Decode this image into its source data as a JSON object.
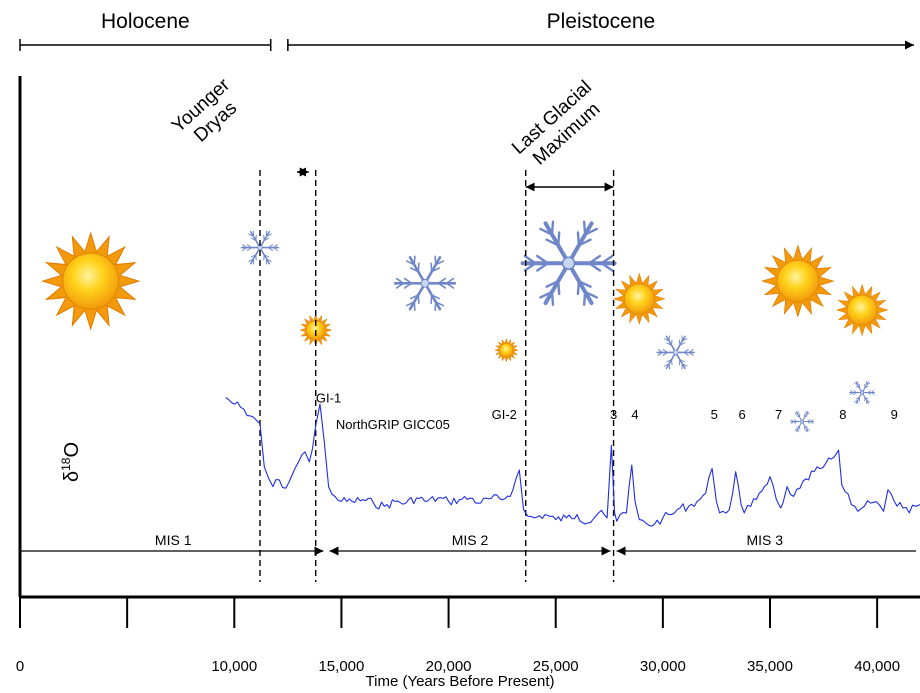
{
  "colors": {
    "series": "#1f2ee6",
    "axis": "#000000",
    "sun_outer": "#f29a0c",
    "sun_inner": "#ffd21a",
    "snowflake": "#6f86c9"
  },
  "eras": [
    {
      "label": "Holocene",
      "from": 0,
      "to": 11700,
      "arrow_end": false
    },
    {
      "label": "Pleistocene",
      "from": 12500,
      "to": 42000,
      "arrow_end": true
    }
  ],
  "annotations": [
    {
      "label_lines": [
        "Younger",
        "Dryas"
      ],
      "from": 12600,
      "to": 13800
    },
    {
      "label_lines": [
        "Last Glacial",
        "Maximum"
      ],
      "from": 23600,
      "to": 27700
    }
  ],
  "icons": [
    {
      "name": "sun-icon",
      "x": 3300,
      "level": 0.78,
      "size": 1.0
    },
    {
      "name": "sun-icon",
      "x": 13800,
      "level": 0.56,
      "size": 0.33
    },
    {
      "name": "sun-icon",
      "x": 22700,
      "level": 0.47,
      "size": 0.24
    },
    {
      "name": "sun-icon",
      "x": 28900,
      "level": 0.7,
      "size": 0.53
    },
    {
      "name": "sun-icon",
      "x": 36300,
      "level": 0.78,
      "size": 0.74
    },
    {
      "name": "sun-icon",
      "x": 39300,
      "level": 0.65,
      "size": 0.53
    },
    {
      "name": "snowflake-icon",
      "x": 11200,
      "level": 0.93,
      "size": 0.4
    },
    {
      "name": "snowflake-icon",
      "x": 18900,
      "level": 0.77,
      "size": 0.65
    },
    {
      "name": "snowflake-icon",
      "x": 25600,
      "level": 0.86,
      "size": 1.0
    },
    {
      "name": "snowflake-icon",
      "x": 30600,
      "level": 0.46,
      "size": 0.4
    },
    {
      "name": "snowflake-icon",
      "x": 36500,
      "level": 0.15,
      "size": 0.25
    },
    {
      "name": "snowflake-icon",
      "x": 39300,
      "level": 0.28,
      "size": 0.27
    }
  ],
  "chart_data": {
    "type": "line",
    "title": "",
    "xlabel": "Time (Years Before Present)",
    "ylabel": "δ18O",
    "ylabel_base": "δ",
    "ylabel_sup": "18",
    "ylabel_tail": "O",
    "xlim": [
      0,
      42000
    ],
    "ylim": [
      -46,
      -36
    ],
    "xticks": [
      0,
      10000,
      15000,
      20000,
      25000,
      30000,
      35000,
      40000
    ],
    "xtick_labels": [
      "0",
      "10,000",
      "15,000",
      "20,000",
      "25,000",
      "30,000",
      "35,000",
      "40,000"
    ],
    "minor_ticks": [
      5000
    ],
    "grid": false,
    "series": [
      {
        "name": "NorthGRIP GICC05",
        "x": [
          9600,
          10000,
          10300,
          10600,
          10900,
          11200,
          11400,
          11600,
          11800,
          12100,
          12400,
          12700,
          13000,
          13300,
          13500,
          13650,
          13800,
          14000,
          14200,
          14400,
          14700,
          15000,
          15500,
          16000,
          16500,
          17000,
          17500,
          18000,
          18500,
          19000,
          19500,
          20000,
          20500,
          21000,
          21500,
          22000,
          22500,
          23000,
          23300,
          23500,
          23700,
          24000,
          24500,
          25000,
          25500,
          26000,
          26500,
          27000,
          27400,
          27600,
          27750,
          27850,
          28000,
          28300,
          28550,
          28700,
          28900,
          29200,
          29600,
          30000,
          30400,
          30800,
          31200,
          31600,
          32000,
          32300,
          32500,
          32650,
          32800,
          33100,
          33400,
          33650,
          33800,
          34100,
          34500,
          35000,
          35300,
          35500,
          35600,
          35800,
          36100,
          36400,
          36800,
          37200,
          37600,
          38000,
          38200,
          38350,
          38500,
          38800,
          39100,
          39400,
          39700,
          40100,
          40300,
          40500,
          40800,
          41200,
          41500,
          41800,
          42000
        ],
        "y": [
          -37.3,
          -37.7,
          -37.9,
          -38.4,
          -38.5,
          -38.9,
          -41.5,
          -42.2,
          -42.7,
          -42.3,
          -42.8,
          -42.0,
          -41.2,
          -40.6,
          -41.2,
          -40.4,
          -39.0,
          -37.7,
          -40.0,
          -42.7,
          -43.3,
          -43.6,
          -43.6,
          -43.5,
          -43.7,
          -43.9,
          -43.6,
          -43.7,
          -43.4,
          -43.6,
          -43.4,
          -43.6,
          -43.5,
          -43.4,
          -43.7,
          -43.4,
          -43.5,
          -42.9,
          -41.7,
          -44.1,
          -44.5,
          -44.6,
          -44.4,
          -44.7,
          -44.6,
          -44.4,
          -44.9,
          -44.3,
          -44.6,
          -40.2,
          -44.3,
          -44.8,
          -44.4,
          -44.3,
          -41.4,
          -43.6,
          -44.7,
          -44.9,
          -45.0,
          -44.6,
          -44.4,
          -44.0,
          -43.9,
          -43.6,
          -43.1,
          -41.6,
          -43.6,
          -44.3,
          -44.2,
          -44.1,
          -41.8,
          -43.8,
          -44.3,
          -43.9,
          -43.1,
          -42.1,
          -43.5,
          -44.0,
          -43.7,
          -42.7,
          -43.3,
          -42.8,
          -42.3,
          -41.5,
          -41.3,
          -40.9,
          -40.5,
          -42.6,
          -43.0,
          -43.8,
          -44.2,
          -43.9,
          -43.7,
          -43.8,
          -44.2,
          -42.9,
          -43.6,
          -44.0,
          -44.3,
          -43.9,
          -43.8
        ]
      }
    ],
    "event_labels": [
      {
        "label": "GI-1",
        "x": 14400,
        "y": -37.6
      },
      {
        "label": "NorthGRIP GICC05",
        "x": 17400,
        "y": -39.2
      },
      {
        "label": "GI-2",
        "x": 22600,
        "y": -38.6
      },
      {
        "label": "3",
        "x": 27700,
        "y": -38.6
      },
      {
        "label": "4",
        "x": 28700,
        "y": -38.6
      },
      {
        "label": "5",
        "x": 32400,
        "y": -38.6
      },
      {
        "label": "6",
        "x": 33700,
        "y": -38.6
      },
      {
        "label": "7",
        "x": 35400,
        "y": -38.6
      },
      {
        "label": "8",
        "x": 38400,
        "y": -38.6
      },
      {
        "label": "9",
        "x": 40800,
        "y": -38.6
      }
    ],
    "mis": [
      {
        "label": "MIS 1",
        "from": 0,
        "to": 14300,
        "left_arrow": false,
        "right_arrow": true
      },
      {
        "label": "MIS 2",
        "from": 14300,
        "to": 27700,
        "left_arrow": true,
        "right_arrow": true
      },
      {
        "label": "MIS 3",
        "from": 27700,
        "to": 42000,
        "left_arrow": true,
        "right_arrow": false
      }
    ],
    "boundaries": [
      11200,
      13800,
      23600,
      27700
    ]
  }
}
